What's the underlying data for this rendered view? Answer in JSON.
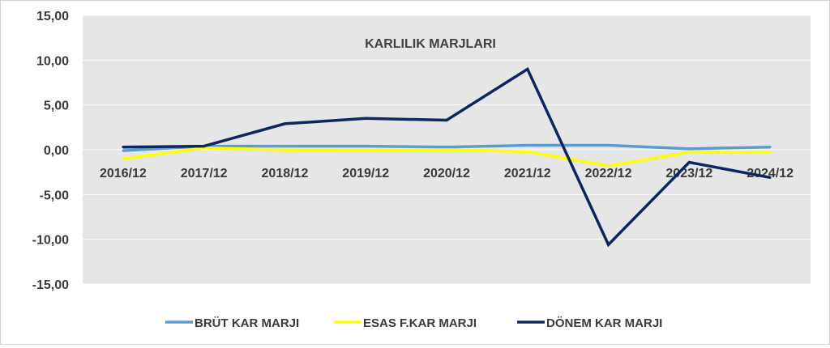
{
  "chart_data": {
    "type": "line",
    "title": "KARLILIK MARJLARI",
    "categories": [
      "2016/12",
      "2017/12",
      "2018/12",
      "2019/12",
      "2020/12",
      "2021/12",
      "2022/12",
      "2023/12",
      "2024/12"
    ],
    "ylim": [
      -15,
      15
    ],
    "yticks": [
      "15,00",
      "10,00",
      "5,00",
      "0,00",
      "-5,00",
      "-10,00",
      "-15,00"
    ],
    "grid": true,
    "legend_position": "bottom",
    "series": [
      {
        "name": "BRÜT KAR MARJI",
        "color": "#5b9bd5",
        "values": [
          -0.1,
          0.4,
          0.4,
          0.4,
          0.3,
          0.5,
          0.5,
          0.1,
          0.3
        ]
      },
      {
        "name": "ESAS F.KAR MARJI",
        "color": "#ffff00",
        "values": [
          -1.0,
          0.2,
          0.0,
          -0.1,
          0.0,
          -0.2,
          -1.8,
          -0.3,
          -0.3
        ]
      },
      {
        "name": "DÖNEM KAR MARJI",
        "color": "#0d2660",
        "values": [
          0.3,
          0.4,
          2.9,
          3.5,
          3.3,
          9.0,
          -10.6,
          -1.4,
          -3.1
        ]
      }
    ]
  }
}
